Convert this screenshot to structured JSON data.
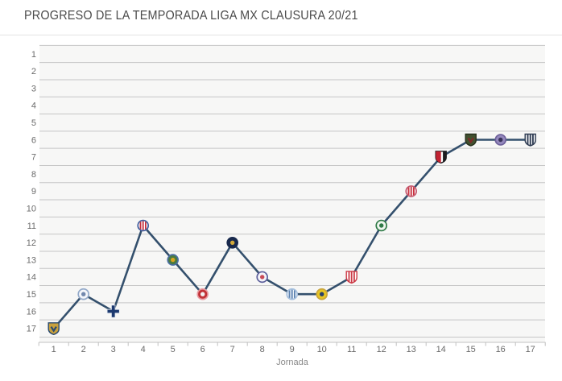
{
  "page": {
    "title": "PROGRESO DE LA TEMPORADA LIGA MX CLAUSURA 20/21"
  },
  "chart_data": {
    "type": "line",
    "title": "PROGRESO DE LA TEMPORADA LIGA MX CLAUSURA 20/21",
    "xlabel": "Jornada",
    "ylabel": "",
    "x": [
      1,
      2,
      3,
      4,
      5,
      6,
      7,
      8,
      9,
      10,
      11,
      12,
      13,
      14,
      15,
      16,
      17
    ],
    "y_axis": {
      "min": 1,
      "max": 17,
      "inverted": true,
      "ticks": [
        1,
        2,
        3,
        4,
        5,
        6,
        7,
        8,
        9,
        10,
        11,
        12,
        13,
        14,
        15,
        16,
        17
      ]
    },
    "grid": "horizontal",
    "legend": false,
    "plot_bg": "#f7f7f6",
    "grid_color": "#c6c6c6",
    "axis_color": "#c0c0c0",
    "tick_label_color": "#6b6b6b",
    "series": [
      {
        "name": "posicion-en-tabla",
        "color": "#34506d",
        "values": [
          17,
          15,
          16,
          11,
          13,
          15,
          12,
          14,
          15,
          15,
          14,
          11,
          9,
          7,
          6,
          6,
          6
        ]
      }
    ],
    "markers": [
      {
        "logo": "gold-navy-shield",
        "shape": "shield",
        "body": "#c9a13d",
        "ring": "#2a4a6e",
        "accent": "#2a4a6e",
        "pattern": "chevron"
      },
      {
        "logo": "white-blue-circle",
        "shape": "circle",
        "body": "#f4f6fa",
        "ring": "#93a9c9",
        "accent": "#7288ad",
        "pattern": "dot"
      },
      {
        "logo": "navy-cross",
        "shape": "plus",
        "body": "#1d3a70",
        "ring": "#1d3a70",
        "accent": "#1d3a70",
        "pattern": "none"
      },
      {
        "logo": "red-white-stripes-blue-ring",
        "shape": "circle",
        "body": "#ffffff",
        "ring": "#3f5e9e",
        "accent": "#c52f3e",
        "pattern": "stripes"
      },
      {
        "logo": "green-gold-blue-ring",
        "shape": "circle",
        "body": "#4a7a40",
        "ring": "#4a6fa5",
        "accent": "#d9a520",
        "pattern": "dot"
      },
      {
        "logo": "red-white-circle",
        "shape": "circle",
        "body": "#c13136",
        "ring": "#e89aa0",
        "accent": "#f2f2f2",
        "pattern": "dot"
      },
      {
        "logo": "navy-gold-circle",
        "shape": "circle",
        "body": "#18294d",
        "ring": "#18294d",
        "accent": "#d2a93a",
        "pattern": "dot"
      },
      {
        "logo": "white-purple-ring-red-core",
        "shape": "circle",
        "body": "#f3f3f8",
        "ring": "#5c5f9b",
        "accent": "#c84a56",
        "pattern": "dot"
      },
      {
        "logo": "white-lightblue-circle",
        "shape": "circle",
        "body": "#eef3f9",
        "ring": "#a3bedd",
        "accent": "#5c82b0",
        "pattern": "stripes"
      },
      {
        "logo": "yellow-navy-circle",
        "shape": "circle",
        "body": "#e8c623",
        "ring": "#c9a53c",
        "accent": "#27406b",
        "pattern": "dot"
      },
      {
        "logo": "white-red-stripes-shield",
        "shape": "shield",
        "body": "#ffffff",
        "ring": "#cc3b47",
        "accent": "#cc3b47",
        "pattern": "stripes"
      },
      {
        "logo": "white-green-ring-circle",
        "shape": "circle",
        "body": "#eef5ee",
        "ring": "#2f7a46",
        "accent": "#2f7a46",
        "pattern": "dot"
      },
      {
        "logo": "white-crimson-stripes-circle",
        "shape": "circle",
        "body": "#f9eef1",
        "ring": "#c4596f",
        "accent": "#c8303d",
        "pattern": "stripes"
      },
      {
        "logo": "red-black-white-shield",
        "shape": "shield",
        "body": "#ffffff",
        "ring": "#1d1d1f",
        "accent": "#c22332",
        "pattern": "half"
      },
      {
        "logo": "darkgreen-red-shield",
        "shape": "shield",
        "body": "#41512f",
        "ring": "#27301c",
        "accent": "#7e2a28",
        "pattern": "chevron"
      },
      {
        "logo": "purple-circle",
        "shape": "circle",
        "body": "#9488bd",
        "ring": "#6c5f99",
        "accent": "#39325a",
        "pattern": "dot"
      },
      {
        "logo": "white-navy-stripes-shield",
        "shape": "shield",
        "body": "#f2f3f5",
        "ring": "#2e3b52",
        "accent": "#2e3b52",
        "pattern": "stripes"
      }
    ]
  }
}
